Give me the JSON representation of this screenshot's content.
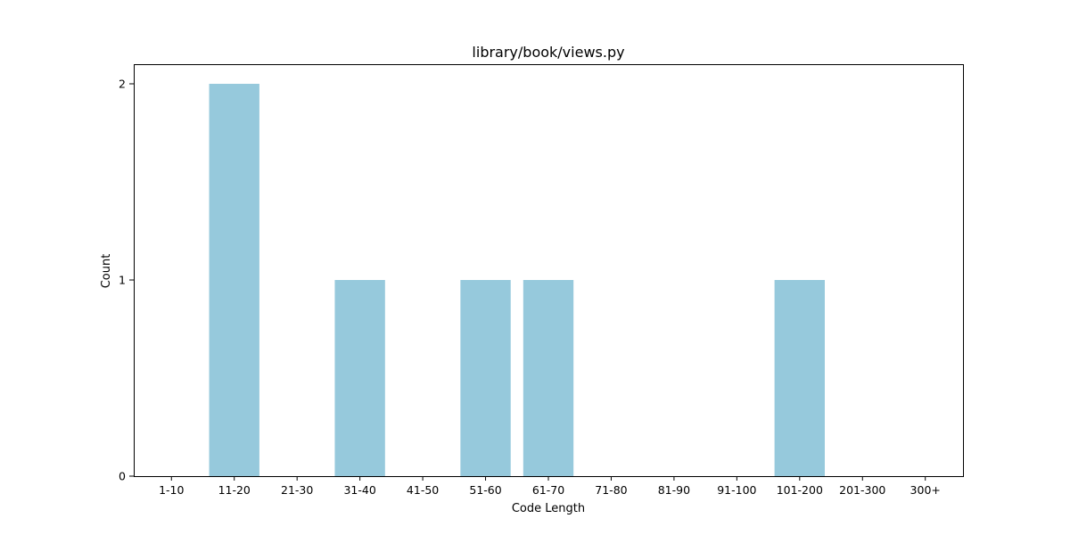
{
  "chart_data": {
    "type": "bar",
    "title": "library/book/views.py",
    "xlabel": "Code Length",
    "ylabel": "Count",
    "categories": [
      "1-10",
      "11-20",
      "21-30",
      "31-40",
      "41-50",
      "51-60",
      "61-70",
      "71-80",
      "81-90",
      "91-100",
      "101-200",
      "201-300",
      "300+"
    ],
    "values": [
      0,
      2,
      0,
      1,
      0,
      1,
      1,
      0,
      0,
      0,
      1,
      0,
      0
    ],
    "ylim": [
      0,
      2.1
    ],
    "yticks": [
      0,
      1,
      2
    ],
    "bar_color": "#96c9dc",
    "grid": false,
    "legend": "none"
  }
}
